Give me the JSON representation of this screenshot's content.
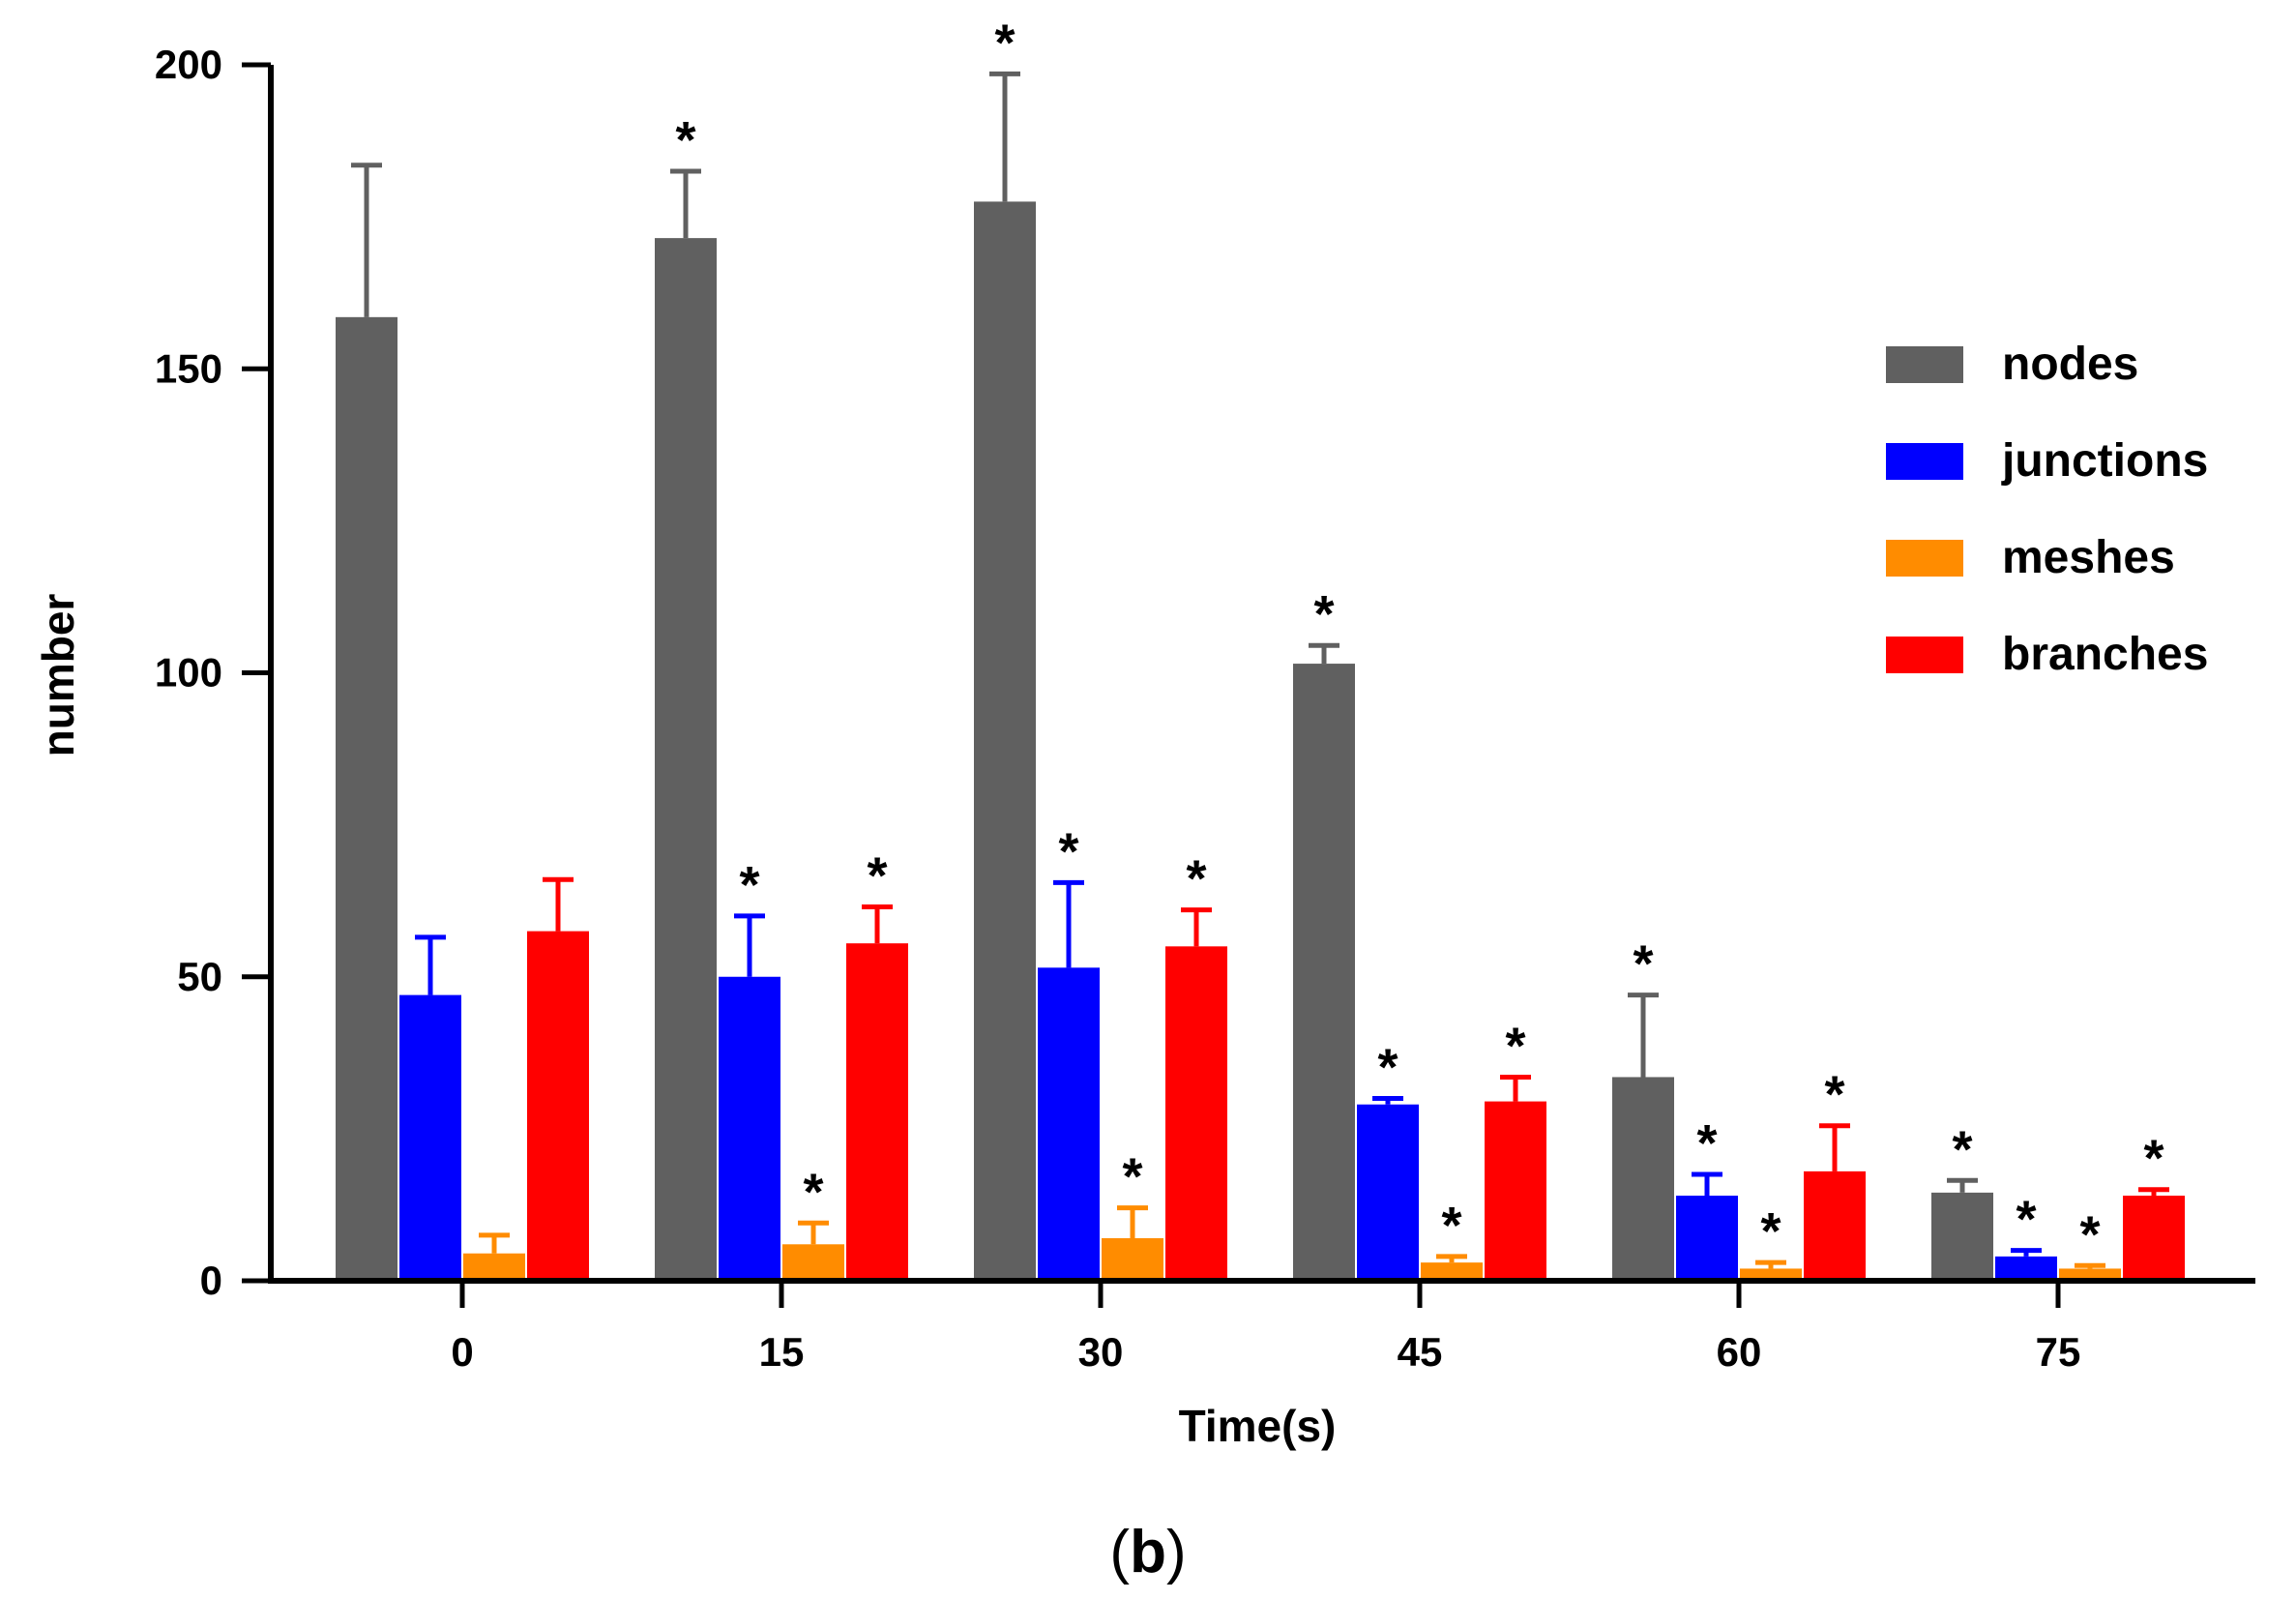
{
  "chart_data": {
    "type": "bar",
    "title": "",
    "xlabel": "Time(s)",
    "ylabel": "number",
    "ylim": [
      0,
      200
    ],
    "yticks": [
      "0",
      "50",
      "100",
      "150",
      "200"
    ],
    "categories": [
      "0",
      "15",
      "30",
      "45",
      "60",
      "75"
    ],
    "series": [
      {
        "name": "nodes",
        "color": "#606060",
        "values": [
          158.5,
          171.5,
          177.5,
          101.5,
          33.5,
          14.5
        ],
        "errors": [
          25,
          11,
          21,
          3,
          13.5,
          2
        ],
        "significant": [
          false,
          true,
          true,
          true,
          true,
          true
        ]
      },
      {
        "name": "junctions",
        "color": "#0000ff",
        "values": [
          47,
          50,
          51.5,
          29,
          14,
          4
        ],
        "errors": [
          9.5,
          10,
          14,
          1,
          3.5,
          1
        ],
        "significant": [
          false,
          true,
          true,
          true,
          true,
          true
        ]
      },
      {
        "name": "meshes",
        "color": "#ff8c00",
        "values": [
          4.5,
          6,
          7,
          3,
          2,
          2
        ],
        "errors": [
          3,
          3.5,
          5,
          1,
          1,
          0.5
        ],
        "significant": [
          false,
          true,
          true,
          true,
          true,
          true
        ]
      },
      {
        "name": "branches",
        "color": "#ff0000",
        "values": [
          57.5,
          55.5,
          55,
          29.5,
          18,
          14
        ],
        "errors": [
          8.5,
          6,
          6,
          4,
          7.5,
          1
        ],
        "significant": [
          false,
          true,
          true,
          true,
          true,
          true
        ]
      }
    ],
    "significance_marker": "*",
    "legend_position": "right",
    "grid": false
  },
  "caption": {
    "open": "(",
    "label": "b",
    "close": ")"
  }
}
